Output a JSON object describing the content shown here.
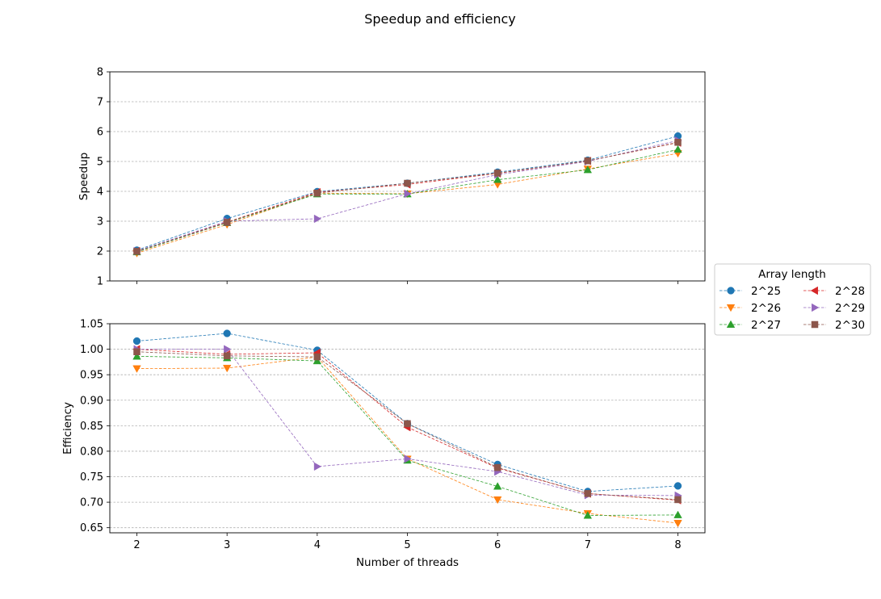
{
  "title": "Speedup and efficiency",
  "legend": {
    "title": "Array length",
    "location": "right-center"
  },
  "chart_data": [
    {
      "type": "line",
      "title": "",
      "xlabel": "",
      "ylabel": "Speedup",
      "x": [
        2,
        3,
        4,
        5,
        6,
        7,
        8
      ],
      "xticks": [
        "2",
        "3",
        "4",
        "5",
        "6",
        "7",
        "8"
      ],
      "ylim": [
        1,
        8
      ],
      "yticks": [
        "1",
        "2",
        "3",
        "4",
        "5",
        "6",
        "7",
        "8"
      ],
      "grid": "y-dashed",
      "series": [
        {
          "name": "2^25",
          "color": "#1f77b4",
          "marker": "circle",
          "values": [
            2.03,
            3.09,
            3.99,
            4.27,
            4.64,
            5.04,
            5.85
          ]
        },
        {
          "name": "2^26",
          "color": "#ff7f0e",
          "marker": "triangle-down",
          "values": [
            1.93,
            2.89,
            3.94,
            3.92,
            4.23,
            4.75,
            5.27
          ]
        },
        {
          "name": "2^27",
          "color": "#2ca02c",
          "marker": "triangle-up",
          "values": [
            1.97,
            2.95,
            3.91,
            3.91,
            4.39,
            4.72,
            5.4
          ]
        },
        {
          "name": "2^28",
          "color": "#d62728",
          "marker": "triangle-left",
          "values": [
            2.0,
            2.97,
            3.97,
            4.23,
            4.6,
            5.02,
            5.63
          ]
        },
        {
          "name": "2^29",
          "color": "#9467bd",
          "marker": "triangle-right",
          "values": [
            2.0,
            3.0,
            3.08,
            3.92,
            4.56,
            5.0,
            5.7
          ]
        },
        {
          "name": "2^30",
          "color": "#8c564b",
          "marker": "square",
          "values": [
            1.99,
            2.96,
            3.94,
            4.27,
            4.61,
            5.02,
            5.64
          ]
        }
      ]
    },
    {
      "type": "line",
      "title": "",
      "xlabel": "Number of threads",
      "ylabel": "Efficiency",
      "x": [
        2,
        3,
        4,
        5,
        6,
        7,
        8
      ],
      "xticks": [
        "2",
        "3",
        "4",
        "5",
        "6",
        "7",
        "8"
      ],
      "ylim": [
        0.64,
        1.05
      ],
      "yticks": [
        "0.65",
        "0.70",
        "0.75",
        "0.80",
        "0.85",
        "0.90",
        "0.95",
        "1.00",
        "1.05"
      ],
      "grid": "y-dashed",
      "series": [
        {
          "name": "2^25",
          "color": "#1f77b4",
          "marker": "circle",
          "values": [
            1.016,
            1.031,
            0.998,
            0.854,
            0.774,
            0.721,
            0.732
          ]
        },
        {
          "name": "2^26",
          "color": "#ff7f0e",
          "marker": "triangle-down",
          "values": [
            0.962,
            0.963,
            0.985,
            0.785,
            0.705,
            0.678,
            0.659
          ]
        },
        {
          "name": "2^27",
          "color": "#2ca02c",
          "marker": "triangle-up",
          "values": [
            0.986,
            0.983,
            0.977,
            0.782,
            0.731,
            0.674,
            0.675
          ]
        },
        {
          "name": "2^28",
          "color": "#d62728",
          "marker": "triangle-left",
          "values": [
            1.0,
            0.99,
            0.993,
            0.847,
            0.767,
            0.717,
            0.704
          ]
        },
        {
          "name": "2^29",
          "color": "#9467bd",
          "marker": "triangle-right",
          "values": [
            1.0,
            1.0,
            0.77,
            0.785,
            0.76,
            0.714,
            0.713
          ]
        },
        {
          "name": "2^30",
          "color": "#8c564b",
          "marker": "square",
          "values": [
            0.995,
            0.987,
            0.985,
            0.854,
            0.768,
            0.717,
            0.705
          ]
        }
      ]
    }
  ]
}
